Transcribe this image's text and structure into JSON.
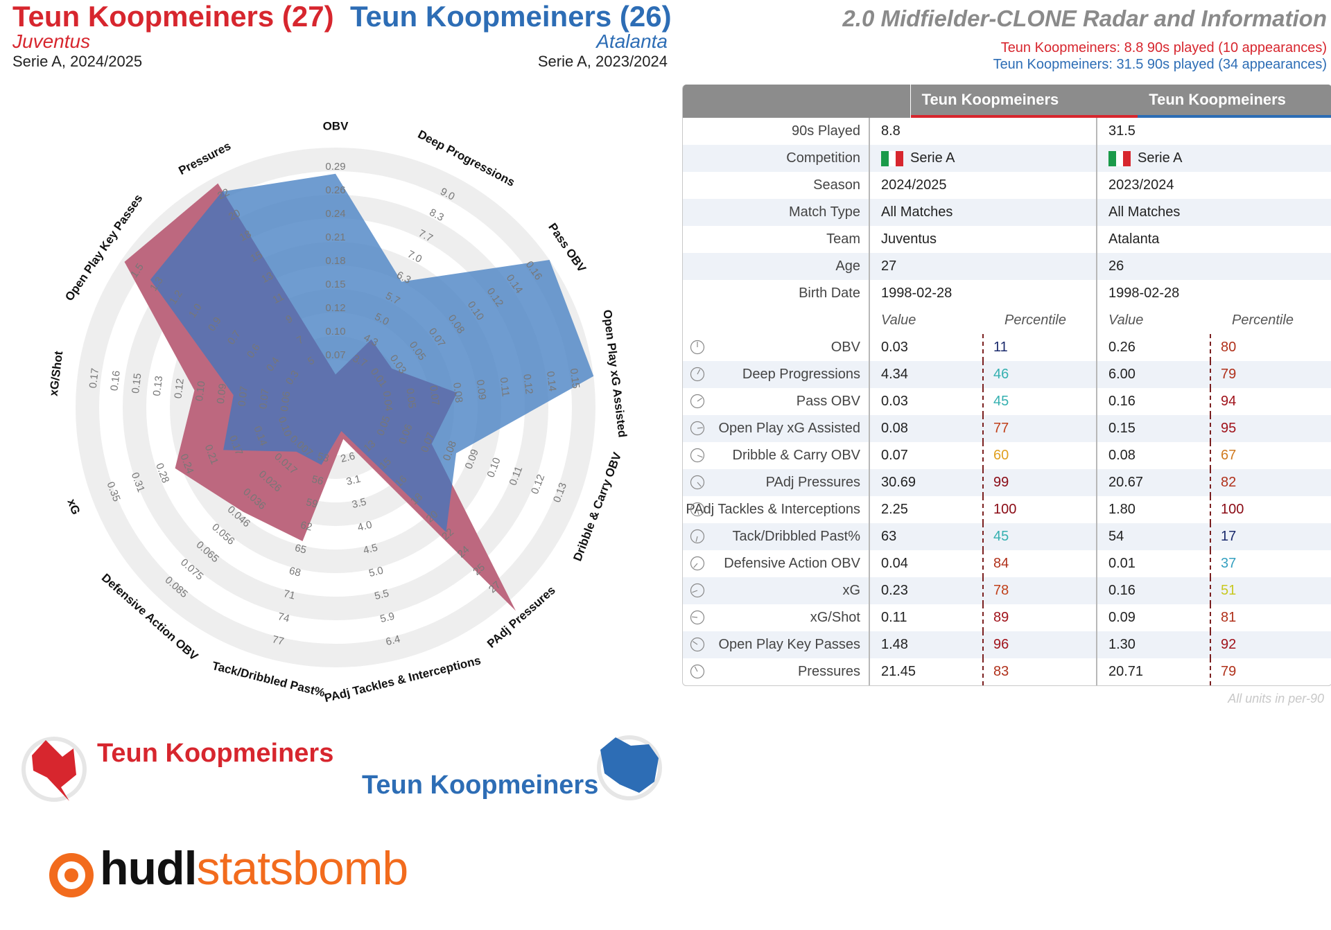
{
  "header": {
    "player1_title": "Teun Koopmeiners (27)",
    "player1_team": "Juventus",
    "player1_comp": "Serie A, 2024/2025",
    "player2_title": "Teun Koopmeiners (26)",
    "player2_team": "Atalanta",
    "player2_comp": "Serie A, 2023/2024",
    "radar_title": "2.0 Midfielder-CLONE Radar and Information",
    "player1_played": "Teun Koopmeiners: 8.8 90s played (10 appearances)",
    "player2_played": "Teun Koopmeiners: 31.5 90s played (34 appearances)"
  },
  "colors": {
    "player1": "#d7262e",
    "player2": "#2d6db5"
  },
  "chart_data": {
    "type": "radar",
    "title": "2.0 Midfielder-CLONE Radar and Information",
    "metrics": [
      {
        "name": "OBV",
        "ticks": [
          "0.07",
          "0.10",
          "0.12",
          "0.15",
          "0.18",
          "0.21",
          "0.24",
          "0.26",
          "0.29"
        ],
        "min": 0.02,
        "max": 0.29
      },
      {
        "name": "Deep Progressions",
        "ticks": [
          "3.7",
          "4.3",
          "5.0",
          "5.7",
          "6.3",
          "7.0",
          "7.7",
          "8.3",
          "9.0"
        ],
        "min": 3.0,
        "max": 9.0
      },
      {
        "name": "Pass OBV",
        "ticks": [
          "0.01",
          "0.03",
          "0.05",
          "0.07",
          "0.08",
          "0.10",
          "0.12",
          "0.14",
          "0.16"
        ],
        "min": 0.0,
        "max": 0.16
      },
      {
        "name": "Open Play xG Assisted",
        "ticks": [
          "0.04",
          "0.05",
          "0.07",
          "0.08",
          "0.09",
          "0.11",
          "0.12",
          "0.14",
          "0.15"
        ],
        "min": 0.03,
        "max": 0.15
      },
      {
        "name": "Dribble & Carry OBV",
        "ticks": [
          "0.05",
          "0.06",
          "0.07",
          "0.08",
          "0.09",
          "0.10",
          "0.11",
          "0.12",
          "0.13"
        ],
        "min": 0.04,
        "max": 0.13
      },
      {
        "name": "PAdj Pressures",
        "ticks": [
          "13",
          "15",
          "16",
          "18",
          "20",
          "22",
          "24",
          "25",
          "27"
        ],
        "min": 11,
        "max": 27
      },
      {
        "name": "PAdj Tackles & Interceptions",
        "ticks": [
          "2.6",
          "3.1",
          "3.5",
          "4.0",
          "4.5",
          "5.0",
          "5.5",
          "5.9",
          "6.4"
        ],
        "min": 2.1,
        "max": 6.4
      },
      {
        "name": "Tack/Dribbled Past%",
        "ticks": [
          "53",
          "56",
          "59",
          "62",
          "65",
          "68",
          "71",
          "74",
          "77"
        ],
        "min": 50,
        "max": 77
      },
      {
        "name": "Defensive Action OBV",
        "ticks": [
          "0.007",
          "0.017",
          "0.026",
          "0.036",
          "0.046",
          "0.056",
          "0.065",
          "0.075",
          "0.085"
        ],
        "min": -0.003,
        "max": 0.085
      },
      {
        "name": "xG",
        "ticks": [
          "0.10",
          "0.14",
          "0.17",
          "0.21",
          "0.24",
          "0.28",
          "0.31",
          "0.35"
        ],
        "min": 0.03,
        "max": 0.35
      },
      {
        "name": "xG/Shot",
        "ticks": [
          "0.06",
          "0.07",
          "0.07",
          "0.09",
          "0.10",
          "0.12",
          "0.13",
          "0.15",
          "0.16",
          "0.17"
        ],
        "min": 0.05,
        "max": 0.17
      },
      {
        "name": "Open Play Key Passes",
        "ticks": [
          "0.3",
          "0.4",
          "0.6",
          "0.7",
          "0.9",
          "1.0",
          "1.2",
          "1.3",
          "1.5"
        ],
        "min": 0.15,
        "max": 1.5
      },
      {
        "name": "Pressures",
        "ticks": [
          "5",
          "7",
          "9",
          "11",
          "13",
          "15",
          "18",
          "20",
          "22"
        ],
        "min": 3,
        "max": 22
      }
    ],
    "series": [
      {
        "name": "Teun Koopmeiners (Juventus 2024/2025)",
        "color": "#d7262e",
        "values": [
          0.03,
          4.34,
          0.03,
          0.08,
          0.07,
          30.69,
          2.25,
          63,
          0.04,
          0.23,
          0.11,
          1.48,
          21.45
        ]
      },
      {
        "name": "Teun Koopmeiners (Atalanta 2023/2024)",
        "color": "#2d6db5",
        "values": [
          0.26,
          6.0,
          0.16,
          0.15,
          0.08,
          20.67,
          1.8,
          54,
          0.01,
          0.16,
          0.09,
          1.3,
          20.71
        ]
      }
    ]
  },
  "table": {
    "header": {
      "p1": "Teun Koopmeiners",
      "p2": "Teun Koopmeiners"
    },
    "info": [
      {
        "label": "90s Played",
        "p1": "8.8",
        "p2": "31.5"
      },
      {
        "label": "Competition",
        "p1": "Serie A",
        "p2": "Serie A",
        "flag": true
      },
      {
        "label": "Season",
        "p1": "2024/2025",
        "p2": "2023/2024"
      },
      {
        "label": "Match Type",
        "p1": "All Matches",
        "p2": "All Matches"
      },
      {
        "label": "Team",
        "p1": "Juventus",
        "p2": "Atalanta"
      },
      {
        "label": "Age",
        "p1": "27",
        "p2": "26"
      },
      {
        "label": "Birth Date",
        "p1": "1998-02-28",
        "p2": "1998-02-28"
      }
    ],
    "subheader": {
      "value": "Value",
      "percentile": "Percentile"
    },
    "metrics": [
      {
        "label": "OBV",
        "p1v": "0.03",
        "p1p": "11",
        "p1c": "#1a2a6c",
        "p2v": "0.26",
        "p2p": "80",
        "p2c": "#b0301a"
      },
      {
        "label": "Deep Progressions",
        "p1v": "4.34",
        "p1p": "46",
        "p1c": "#35b0b0",
        "p2v": "6.00",
        "p2p": "79",
        "p2c": "#b0301a"
      },
      {
        "label": "Pass OBV",
        "p1v": "0.03",
        "p1p": "45",
        "p1c": "#35b0b0",
        "p2v": "0.16",
        "p2p": "94",
        "p2c": "#a0121a"
      },
      {
        "label": "Open Play xG Assisted",
        "p1v": "0.08",
        "p1p": "77",
        "p1c": "#c0401a",
        "p2v": "0.15",
        "p2p": "95",
        "p2c": "#a0121a"
      },
      {
        "label": "Dribble & Carry OBV",
        "p1v": "0.07",
        "p1p": "60",
        "p1c": "#e0a020",
        "p2v": "0.08",
        "p2p": "67",
        "p2c": "#d07a20"
      },
      {
        "label": "PAdj Pressures",
        "p1v": "30.69",
        "p1p": "99",
        "p1c": "#8a0a14",
        "p2v": "20.67",
        "p2p": "82",
        "p2c": "#b0301a"
      },
      {
        "label": "PAdj Tackles & Interceptions",
        "p1v": "2.25",
        "p1p": "100",
        "p1c": "#8a0a14",
        "p2v": "1.80",
        "p2p": "100",
        "p2c": "#8a0a14"
      },
      {
        "label": "Tack/Dribbled Past%",
        "p1v": "63",
        "p1p": "45",
        "p1c": "#35b0b0",
        "p2v": "54",
        "p2p": "17",
        "p2c": "#1a2a6c"
      },
      {
        "label": "Defensive Action OBV",
        "p1v": "0.04",
        "p1p": "84",
        "p1c": "#b0301a",
        "p2v": "0.01",
        "p2p": "37",
        "p2c": "#35a0c0"
      },
      {
        "label": "xG",
        "p1v": "0.23",
        "p1p": "78",
        "p1c": "#c0401a",
        "p2v": "0.16",
        "p2p": "51",
        "p2c": "#c8c820"
      },
      {
        "label": "xG/Shot",
        "p1v": "0.11",
        "p1p": "89",
        "p1c": "#a0121a",
        "p2v": "0.09",
        "p2p": "81",
        "p2c": "#b0301a"
      },
      {
        "label": "Open Play Key Passes",
        "p1v": "1.48",
        "p1p": "96",
        "p1c": "#a0121a",
        "p2v": "1.30",
        "p2p": "92",
        "p2c": "#a0121a"
      },
      {
        "label": "Pressures",
        "p1v": "21.45",
        "p1p": "83",
        "p1c": "#b0301a",
        "p2v": "20.71",
        "p2p": "79",
        "p2c": "#b0301a"
      }
    ],
    "note": "All units in per-90"
  },
  "legend": {
    "player1": "Teun Koopmeiners",
    "player2": "Teun Koopmeiners"
  },
  "brand": {
    "part1": "hudl",
    "part2": "statsbomb"
  }
}
